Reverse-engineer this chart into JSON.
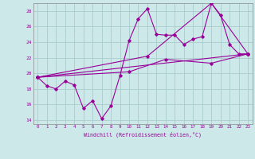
{
  "xlabel": "Windchill (Refroidissement éolien,°C)",
  "bg_color": "#cce8e8",
  "grid_color": "#aacccc",
  "line_color": "#990099",
  "spine_color": "#888888",
  "x_min": -0.5,
  "x_max": 23.5,
  "y_min": 13.5,
  "y_max": 29.0,
  "y_ticks": [
    14,
    16,
    18,
    20,
    22,
    24,
    26,
    28
  ],
  "x_ticks": [
    0,
    1,
    2,
    3,
    4,
    5,
    6,
    7,
    8,
    9,
    10,
    11,
    12,
    13,
    14,
    15,
    16,
    17,
    18,
    19,
    20,
    21,
    22,
    23
  ],
  "series1": [
    19.5,
    18.4,
    18.0,
    19.0,
    18.5,
    15.5,
    16.5,
    14.2,
    15.8,
    19.7,
    24.2,
    27.0,
    28.3,
    25.0,
    24.9,
    24.9,
    23.7,
    24.4,
    24.7,
    29.0,
    27.5,
    23.7,
    22.5,
    22.5
  ],
  "series2": [
    [
      0,
      19.5
    ],
    [
      23,
      22.5
    ]
  ],
  "series3": [
    [
      0,
      19.5
    ],
    [
      12,
      22.2
    ],
    [
      19,
      29.0
    ],
    [
      23,
      22.5
    ]
  ],
  "series4": [
    [
      0,
      19.5
    ],
    [
      10,
      20.2
    ],
    [
      14,
      21.8
    ],
    [
      19,
      21.3
    ],
    [
      23,
      22.5
    ]
  ]
}
